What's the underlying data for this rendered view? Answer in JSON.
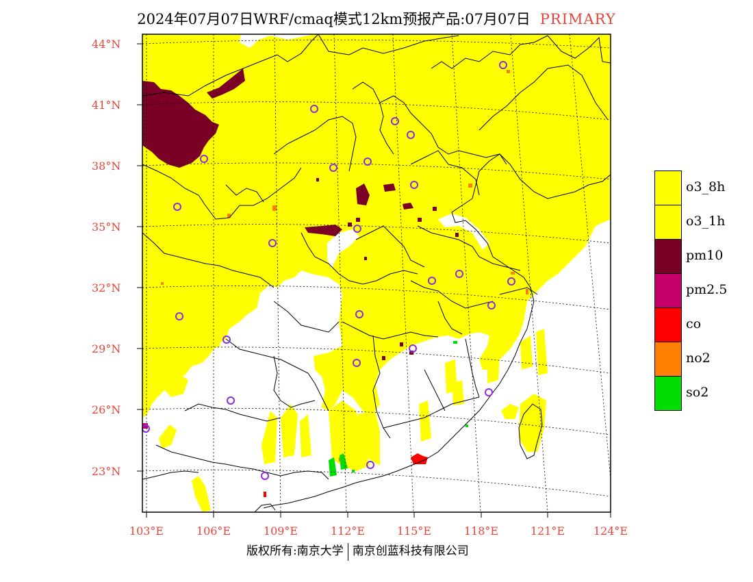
{
  "title": {
    "main": "2024年07月07日WRF/cmaq模式12km预报产品:07月07日",
    "tag": "PRIMARY"
  },
  "axes": {
    "lat_labels": [
      "44°N",
      "41°N",
      "38°N",
      "35°N",
      "32°N",
      "29°N",
      "26°N",
      "23°N"
    ],
    "lon_labels": [
      "103°E",
      "106°E",
      "109°E",
      "112°E",
      "115°E",
      "118°E",
      "121°E",
      "124°E"
    ]
  },
  "legend": [
    {
      "label": "o3_8h",
      "color": "#ffff00"
    },
    {
      "label": "o3_1h",
      "color": "#ffff00"
    },
    {
      "label": "pm10",
      "color": "#7a0026"
    },
    {
      "label": "pm2.5",
      "color": "#c8006e"
    },
    {
      "label": "co",
      "color": "#ff0000"
    },
    {
      "label": "no2",
      "color": "#ff8000"
    },
    {
      "label": "so2",
      "color": "#00dd00"
    }
  ],
  "footer": {
    "copyright": "版权所有:南京大学",
    "company": "南京创蓝科技有限公司"
  }
}
